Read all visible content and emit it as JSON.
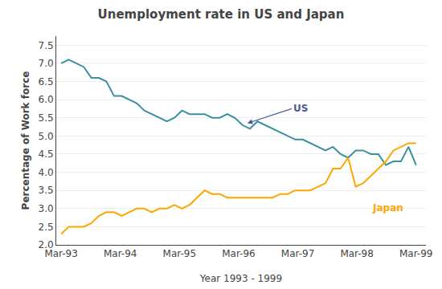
{
  "chart_data": {
    "type": "line",
    "title": "Unemployment rate in US and Japan",
    "xlabel": "Year 1993 - 1999",
    "ylabel": "Percentage of Work force",
    "x": [
      0,
      1.5319148936,
      3.0638297872,
      4.5957446809,
      6.1276595745,
      7.6595744681,
      9.1914893617,
      10.7234042553,
      12.2553191489,
      13.7872340426,
      15.3191489362,
      16.8510638298,
      18.3829787234,
      19.914893617,
      21.4468085106,
      22.9787234043,
      24.5106382979,
      26.0425531915,
      27.5744680851,
      29.1063829787,
      30.6382978723,
      32.170212766,
      33.7021276596,
      35.2340425532,
      36.7659574468,
      38.2978723404,
      39.829787234,
      41.3617021277,
      42.8936170213,
      44.4255319149,
      45.9574468085,
      47.4893617021,
      49.0212765957,
      50.5531914894,
      52.085106383,
      53.6170212766,
      55.1489361702,
      56.6808510638,
      58.2127659574,
      59.7446808511,
      61.2765957447,
      62.8085106383,
      64.3404255319,
      65.8723404255,
      67.4042553191,
      68.9361702128,
      70.4680851064,
      72
    ],
    "xlim": [
      -1,
      74
    ],
    "xticks": [
      {
        "value": 0,
        "label": "Mar-93"
      },
      {
        "value": 12,
        "label": "Mar-94"
      },
      {
        "value": 24,
        "label": "Mar-95"
      },
      {
        "value": 36,
        "label": "Mar-96"
      },
      {
        "value": 48,
        "label": "Mar-97"
      },
      {
        "value": 60,
        "label": "Mar-98"
      },
      {
        "value": 72,
        "label": "Mar-99"
      }
    ],
    "ylim": [
      2.0,
      7.75
    ],
    "yticks": [
      {
        "value": 2,
        "label": "2.0"
      },
      2.5,
      {
        "value": 3,
        "label": "3.0"
      },
      3.5,
      {
        "value": 4,
        "label": "4.0"
      },
      4.5,
      {
        "value": 5,
        "label": "5.0"
      },
      5.5,
      {
        "value": 6,
        "label": "6.0"
      },
      6.5,
      {
        "value": 7,
        "label": "7.0"
      },
      7.5
    ],
    "grid": true,
    "series": [
      {
        "color": "#3a8fa0",
        "values": [
          7.0,
          7.1,
          7.0,
          6.9,
          6.6,
          6.6,
          6.5,
          6.1,
          6.1,
          6.0,
          5.9,
          5.7,
          5.6,
          5.5,
          5.4,
          5.5,
          5.7,
          5.6,
          5.6,
          5.6,
          5.5,
          5.5,
          5.6,
          5.5,
          5.3,
          5.2,
          5.4,
          5.3,
          5.2,
          5.1,
          5.0,
          4.9,
          4.9,
          4.8,
          4.7,
          4.6,
          4.7,
          4.5,
          4.4,
          4.6,
          4.6,
          4.5,
          4.5,
          4.2,
          4.3,
          4.3,
          4.7,
          4.2
        ]
      },
      {
        "color": "#FFA500",
        "values": [
          2.3,
          2.5,
          2.5,
          2.5,
          2.6,
          2.8,
          2.9,
          2.9,
          2.8,
          2.9,
          3.0,
          3.0,
          2.9,
          3.0,
          3.0,
          3.1,
          3.0,
          3.1,
          3.3,
          3.5,
          3.4,
          3.4,
          3.3,
          3.3,
          3.3,
          3.3,
          3.3,
          3.3,
          3.3,
          3.4,
          3.4,
          3.5,
          3.5,
          3.5,
          3.6,
          3.7,
          4.1,
          4.1,
          4.4,
          3.6,
          3.7,
          3.9,
          4.1,
          4.3,
          4.6,
          4.7,
          4.8,
          4.8
        ]
      }
    ],
    "annotations": [
      {
        "text": "US",
        "color": "#4a5a9a"
      },
      {
        "text": "Japan",
        "color": "#FFA500"
      }
    ]
  }
}
